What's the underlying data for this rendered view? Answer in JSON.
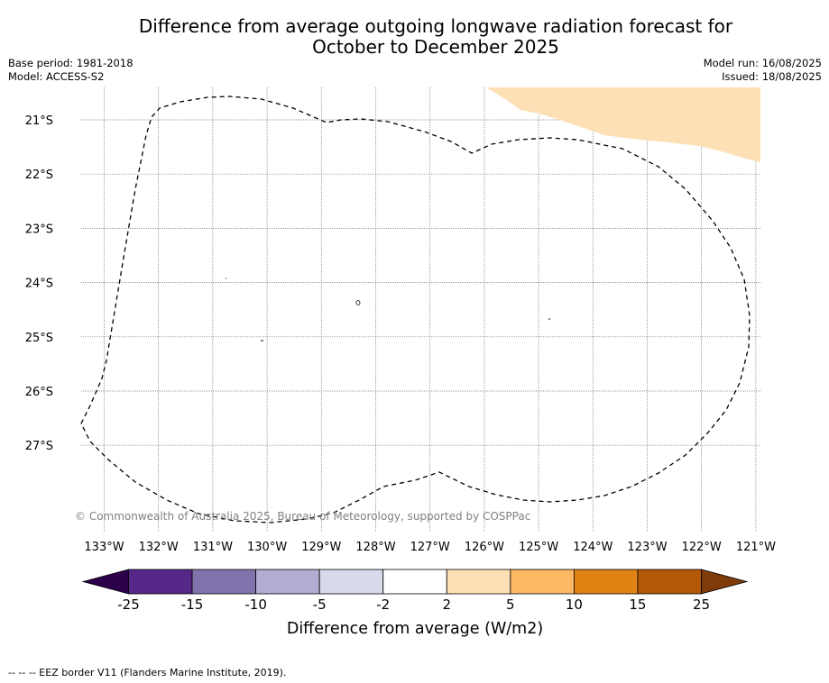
{
  "title": {
    "line1": "Difference from average outgoing longwave radiation forecast for",
    "line2": "October to December 2025"
  },
  "meta_left": {
    "base_period": "Base period: 1981-2018",
    "model": "Model: ACCESS-S2"
  },
  "meta_right": {
    "model_run": "Model run: 16/08/2025",
    "issued": "Issued: 18/08/2025"
  },
  "map": {
    "lat_labels": [
      "21°S",
      "22°S",
      "23°S",
      "24°S",
      "25°S",
      "26°S",
      "27°S"
    ],
    "lon_labels": [
      "133°W",
      "132°W",
      "131°W",
      "130°W",
      "129°W",
      "128°W",
      "127°W",
      "126°W",
      "125°W",
      "124°W",
      "123°W",
      "122°W",
      "121°W"
    ],
    "copyright": "© Commonwealth of Australia 2025, Bureau of Meteorology, supported by COSPPac",
    "anomaly_fill_color": "#fde0b6",
    "border_color": "#000000"
  },
  "colorbar": {
    "title": "Difference from average (W/m2)",
    "tick_labels": [
      "-25",
      "-15",
      "-10",
      "-5",
      "-2",
      "2",
      "5",
      "10",
      "15",
      "25"
    ],
    "colors": [
      "#2d004b",
      "#542788",
      "#8073ac",
      "#b2abd2",
      "#d8daeb",
      "#ffffff",
      "#fee0b6",
      "#fdb863",
      "#e08214",
      "#b35806",
      "#7f3b08"
    ]
  },
  "footer_note": "--  --  -- EEZ border V11 (Flanders Marine Institute, 2019)."
}
